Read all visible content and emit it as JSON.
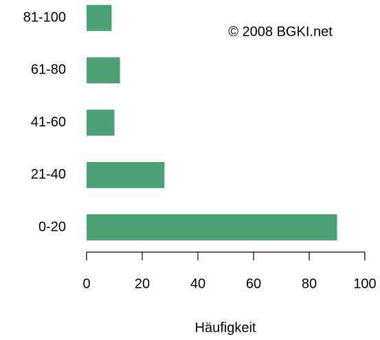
{
  "chart_data": {
    "type": "barh",
    "categories": [
      "0-20",
      "21-40",
      "41-60",
      "61-80",
      "81-100"
    ],
    "values": [
      90,
      28,
      10,
      12,
      9
    ],
    "color": "#4ca274",
    "xlim": [
      0,
      100
    ],
    "xticks": [
      0,
      20,
      40,
      60,
      80,
      100
    ],
    "xlabel": "Häufigkeit",
    "annotation": "© 2008 BGKI.net"
  }
}
